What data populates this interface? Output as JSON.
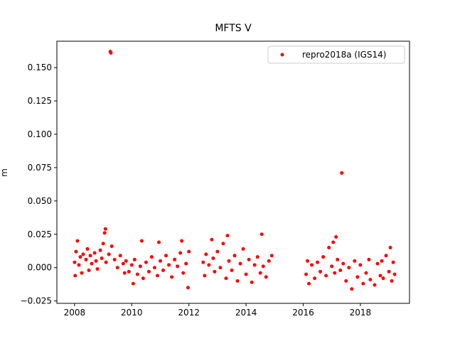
{
  "chart_data": {
    "type": "scatter",
    "title": "MFTS V",
    "y_label": "m",
    "xlim": [
      2007.38,
      2019.72
    ],
    "ylim": [
      -0.0268,
      0.1698
    ],
    "xticks": [
      2008,
      2010,
      2012,
      2014,
      2016,
      2018
    ],
    "yticks": [
      {
        "value": -0.025,
        "label": "−0.025"
      },
      {
        "value": 0,
        "label": "0.000"
      },
      {
        "value": 0.025,
        "label": "0.025"
      },
      {
        "value": 0.05,
        "label": "0.050"
      },
      {
        "value": 0.075,
        "label": "0.075"
      },
      {
        "value": 0.1,
        "label": "0.100"
      },
      {
        "value": 0.125,
        "label": "0.125"
      },
      {
        "value": 0.15,
        "label": "0.150"
      }
    ],
    "grid": false,
    "legend": "upper right",
    "series": [
      {
        "name": "repro2018a (IGS14)",
        "color": "#ff0000",
        "x": [
          2008.0,
          2008.02,
          2008.05,
          2008.1,
          2008.15,
          2008.2,
          2008.25,
          2008.3,
          2008.4,
          2008.45,
          2008.5,
          2008.55,
          2008.6,
          2008.7,
          2008.75,
          2008.8,
          2008.9,
          2008.95,
          2009.0,
          2009.05,
          2009.08,
          2009.1,
          2009.2,
          2009.25,
          2009.27,
          2009.3,
          2009.4,
          2009.5,
          2009.6,
          2009.7,
          2009.75,
          2009.8,
          2009.9,
          2010.0,
          2010.05,
          2010.1,
          2010.2,
          2010.3,
          2010.35,
          2010.4,
          2010.5,
          2010.6,
          2010.7,
          2010.8,
          2010.9,
          2010.95,
          2011.0,
          2011.1,
          2011.2,
          2011.3,
          2011.4,
          2011.5,
          2011.6,
          2011.7,
          2011.75,
          2011.8,
          2011.9,
          2011.97,
          2012.0,
          2012.5,
          2012.55,
          2012.6,
          2012.7,
          2012.8,
          2012.85,
          2012.9,
          2013.0,
          2013.1,
          2013.2,
          2013.3,
          2013.35,
          2013.4,
          2013.5,
          2013.6,
          2013.7,
          2013.8,
          2013.9,
          2014.0,
          2014.1,
          2014.2,
          2014.3,
          2014.4,
          2014.5,
          2014.55,
          2014.6,
          2014.7,
          2014.8,
          2014.9,
          2016.1,
          2016.15,
          2016.2,
          2016.3,
          2016.4,
          2016.5,
          2016.6,
          2016.7,
          2016.8,
          2016.9,
          2017.0,
          2017.05,
          2017.1,
          2017.15,
          2017.2,
          2017.3,
          2017.35,
          2017.4,
          2017.5,
          2017.6,
          2017.7,
          2017.8,
          2017.9,
          2018.0,
          2018.1,
          2018.2,
          2018.3,
          2018.35,
          2018.5,
          2018.6,
          2018.7,
          2018.75,
          2018.8,
          2018.9,
          2019.0,
          2019.05,
          2019.1,
          2019.15,
          2019.2
        ],
        "values": [
          0.004,
          -0.006,
          0.012,
          0.02,
          0.002,
          0.008,
          -0.004,
          0.01,
          0.006,
          0.014,
          -0.002,
          0.009,
          0.003,
          0.011,
          0.005,
          -0.001,
          0.013,
          0.007,
          0.018,
          0.026,
          0.029,
          0.004,
          0.01,
          0.162,
          0.161,
          0.016,
          0.006,
          0.0,
          0.009,
          0.003,
          -0.004,
          0.005,
          -0.003,
          0.002,
          -0.012,
          0.006,
          -0.005,
          0.001,
          0.02,
          -0.008,
          0.004,
          -0.003,
          0.008,
          0.0,
          -0.006,
          0.019,
          0.005,
          -0.002,
          0.009,
          0.002,
          -0.007,
          0.006,
          0.001,
          0.011,
          0.02,
          -0.004,
          0.003,
          -0.015,
          0.012,
          0.004,
          -0.006,
          0.01,
          0.002,
          0.021,
          0.007,
          -0.003,
          0.012,
          0.0,
          0.018,
          -0.008,
          0.024,
          0.005,
          -0.002,
          0.009,
          -0.01,
          0.003,
          0.014,
          -0.005,
          0.006,
          -0.011,
          0.002,
          0.008,
          -0.004,
          0.025,
          0.001,
          -0.007,
          0.005,
          0.009,
          -0.005,
          0.005,
          -0.012,
          0.002,
          -0.008,
          0.004,
          -0.003,
          0.008,
          -0.006,
          0.015,
          0.001,
          0.019,
          -0.004,
          0.023,
          0.006,
          -0.002,
          0.071,
          0.003,
          -0.01,
          0.0,
          -0.016,
          0.005,
          -0.007,
          0.002,
          -0.012,
          -0.004,
          0.006,
          -0.009,
          -0.013,
          0.003,
          -0.006,
          0.005,
          -0.008,
          0.009,
          -0.003,
          0.015,
          -0.01,
          0.004,
          -0.005
        ]
      }
    ]
  }
}
